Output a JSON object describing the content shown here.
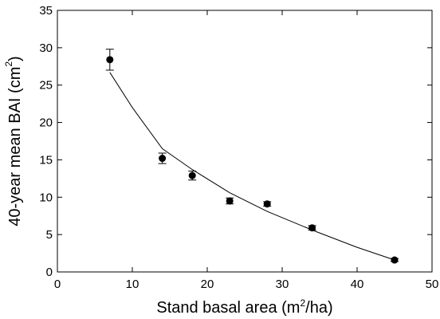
{
  "chart_data": {
    "type": "scatter",
    "xlabel": {
      "before": "Stand basal area (m",
      "sup": "2",
      "after": "/ha)"
    },
    "ylabel": {
      "before": "40-year mean BAI (cm",
      "sup": "2",
      "after": ")"
    },
    "xlim": [
      0,
      50
    ],
    "ylim": [
      0,
      35
    ],
    "xticks": [
      0,
      10,
      20,
      30,
      40,
      50
    ],
    "yticks": [
      0,
      5,
      10,
      15,
      20,
      25,
      30,
      35
    ],
    "grid": false,
    "points": [
      {
        "x": 7,
        "y": 28.4,
        "err": 1.4
      },
      {
        "x": 14,
        "y": 15.2,
        "err": 0.7
      },
      {
        "x": 18,
        "y": 12.9,
        "err": 0.6
      },
      {
        "x": 23,
        "y": 9.5,
        "err": 0.4
      },
      {
        "x": 28,
        "y": 9.1,
        "err": 0.3
      },
      {
        "x": 34,
        "y": 5.9,
        "err": 0.3
      },
      {
        "x": 45,
        "y": 1.6,
        "err": 0.2
      }
    ],
    "fit_line": {
      "x": [
        7,
        10,
        14,
        18,
        23,
        28,
        34,
        40,
        45
      ],
      "y": [
        26.7,
        22.0,
        16.5,
        13.7,
        10.6,
        8.1,
        5.6,
        3.3,
        1.6
      ]
    },
    "colors": {
      "marker": "#000000",
      "line": "#000000"
    }
  }
}
